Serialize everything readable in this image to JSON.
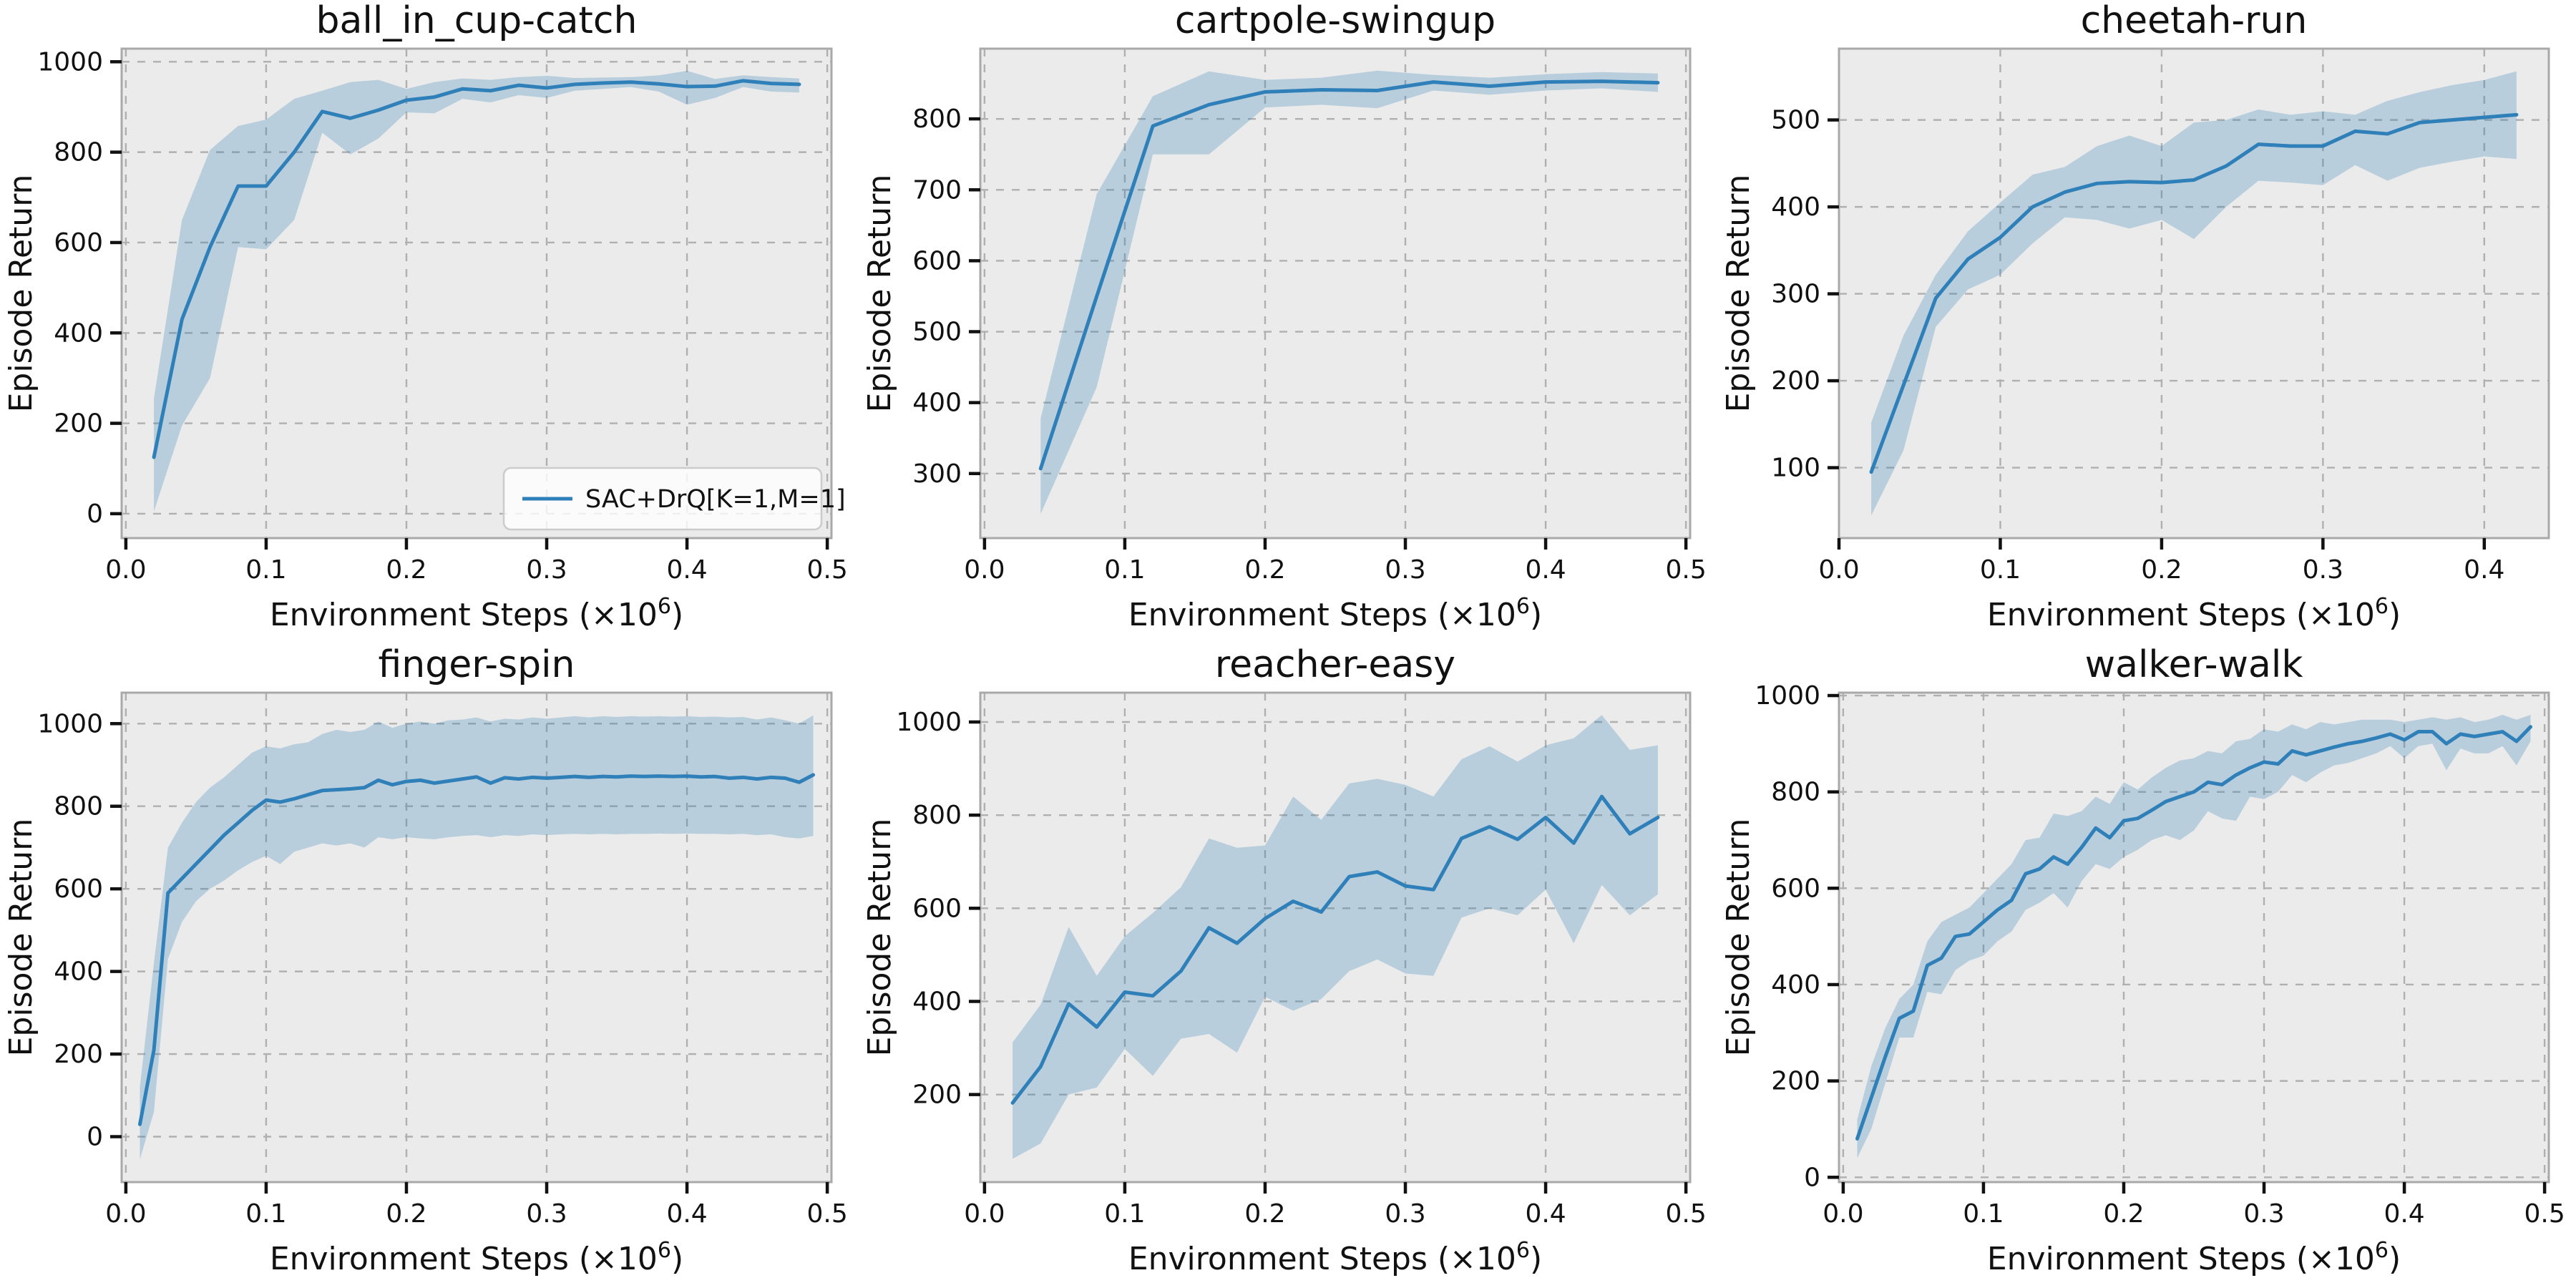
{
  "figure": {
    "xlabel_prefix": "Environment Steps (",
    "xlabel_mult": "×10",
    "xlabel_exp": "6",
    "xlabel_suffix": ")",
    "ylabel": "Episode Return"
  },
  "style": {
    "figure_bg": "#ffffff",
    "axes_bg": "#ebebeb",
    "grid_color": "#b0b0b0",
    "spine_color": "#a9a9a9",
    "tick_color": "#111111",
    "text_color": "#111111",
    "line_color": "#2f7fb9",
    "band_color": "#1f77b4",
    "band_opacity": 0.25,
    "legend_bg": "#ffffff",
    "legend_border": "#cccccc"
  },
  "chart_data": [
    {
      "type": "line",
      "title": "ball_in_cup-catch",
      "xlabel": "Environment Steps (×10⁶)",
      "ylabel": "Episode Return",
      "legend": true,
      "legend_position": "lower right",
      "grid": true,
      "xlim": [
        -0.003,
        0.503
      ],
      "ylim": [
        -54,
        1029
      ],
      "xticks": [
        0.0,
        0.1,
        0.2,
        0.3,
        0.4,
        0.5
      ],
      "xtick_labels": [
        "0.0",
        "0.1",
        "0.2",
        "0.3",
        "0.4",
        "0.5"
      ],
      "yticks": [
        0,
        200,
        400,
        600,
        800,
        1000
      ],
      "ytick_labels": [
        "0",
        "200",
        "400",
        "600",
        "800",
        "1000"
      ],
      "series": [
        {
          "name": "SAC+DrQ[K=1,M=1]",
          "x": [
            0.02,
            0.04,
            0.06,
            0.08,
            0.1,
            0.12,
            0.14,
            0.16,
            0.18,
            0.2,
            0.22,
            0.24,
            0.26,
            0.28,
            0.3,
            0.32,
            0.34,
            0.36,
            0.38,
            0.4,
            0.42,
            0.44,
            0.46,
            0.48
          ],
          "y": [
            125,
            430,
            590,
            725,
            725,
            800,
            890,
            875,
            893,
            915,
            922,
            940,
            936,
            948,
            942,
            950,
            953,
            955,
            951,
            945,
            946,
            958,
            952,
            950
          ],
          "band_lower": [
            5,
            195,
            300,
            590,
            585,
            650,
            843,
            795,
            830,
            888,
            886,
            918,
            910,
            926,
            920,
            936,
            940,
            944,
            934,
            905,
            920,
            944,
            934,
            932
          ],
          "band_upper": [
            255,
            650,
            805,
            858,
            872,
            918,
            936,
            955,
            960,
            940,
            955,
            963,
            960,
            966,
            969,
            964,
            965,
            966,
            970,
            980,
            962,
            970,
            966,
            963
          ]
        }
      ]
    },
    {
      "type": "line",
      "title": "cartpole-swingup",
      "xlabel": "Environment Steps (×10⁶)",
      "ylabel": "Episode Return",
      "legend": false,
      "grid": true,
      "xlim": [
        -0.003,
        0.503
      ],
      "ylim": [
        209,
        899
      ],
      "xticks": [
        0.0,
        0.1,
        0.2,
        0.3,
        0.4,
        0.5
      ],
      "xtick_labels": [
        "0.0",
        "0.1",
        "0.2",
        "0.3",
        "0.4",
        "0.5"
      ],
      "yticks": [
        300,
        400,
        500,
        600,
        700,
        800
      ],
      "ytick_labels": [
        "300",
        "400",
        "500",
        "600",
        "700",
        "800"
      ],
      "series": [
        {
          "name": "SAC+DrQ[K=1,M=1]",
          "x": [
            0.04,
            0.08,
            0.12,
            0.16,
            0.2,
            0.24,
            0.28,
            0.32,
            0.36,
            0.4,
            0.44,
            0.48
          ],
          "y": [
            307,
            550,
            790,
            820,
            838,
            841,
            840,
            852,
            846,
            852,
            853,
            851
          ],
          "band_lower": [
            243,
            422,
            750,
            750,
            816,
            820,
            815,
            840,
            834,
            840,
            843,
            838
          ],
          "band_upper": [
            378,
            694,
            832,
            867,
            855,
            858,
            868,
            862,
            858,
            863,
            866,
            864
          ]
        }
      ]
    },
    {
      "type": "line",
      "title": "cheetah-run",
      "xlabel": "Environment Steps (×10⁶)",
      "ylabel": "Episode Return",
      "legend": false,
      "grid": true,
      "xlim": [
        0.0,
        0.44
      ],
      "ylim": [
        19,
        582
      ],
      "xticks": [
        0.0,
        0.1,
        0.2,
        0.3,
        0.4
      ],
      "xtick_labels": [
        "0.0",
        "0.1",
        "0.2",
        "0.3",
        "0.4"
      ],
      "yticks": [
        100,
        200,
        300,
        400,
        500
      ],
      "ytick_labels": [
        "100",
        "200",
        "300",
        "400",
        "500"
      ],
      "series": [
        {
          "name": "SAC+DrQ[K=1,M=1]",
          "x": [
            0.02,
            0.04,
            0.06,
            0.08,
            0.1,
            0.12,
            0.14,
            0.16,
            0.18,
            0.2,
            0.22,
            0.24,
            0.26,
            0.28,
            0.3,
            0.32,
            0.34,
            0.36,
            0.38,
            0.4,
            0.42
          ],
          "y": [
            95,
            195,
            295,
            340,
            365,
            400,
            417,
            427,
            429,
            428,
            431,
            447,
            472,
            470,
            470,
            487,
            484,
            497,
            500,
            503,
            506
          ],
          "band_lower": [
            45,
            120,
            262,
            305,
            322,
            358,
            388,
            385,
            375,
            385,
            363,
            400,
            430,
            428,
            425,
            448,
            430,
            445,
            452,
            458,
            455
          ],
          "band_upper": [
            152,
            252,
            322,
            372,
            405,
            437,
            446,
            470,
            482,
            470,
            497,
            500,
            512,
            506,
            510,
            506,
            522,
            532,
            540,
            546,
            556
          ]
        }
      ]
    },
    {
      "type": "line",
      "title": "finger-spin",
      "xlabel": "Environment Steps (×10⁶)",
      "ylabel": "Episode Return",
      "legend": false,
      "grid": true,
      "xlim": [
        -0.003,
        0.503
      ],
      "ylim": [
        -110,
        1075
      ],
      "xticks": [
        0.0,
        0.1,
        0.2,
        0.3,
        0.4,
        0.5
      ],
      "xtick_labels": [
        "0.0",
        "0.1",
        "0.2",
        "0.3",
        "0.4",
        "0.5"
      ],
      "yticks": [
        0,
        200,
        400,
        600,
        800,
        1000
      ],
      "ytick_labels": [
        "0",
        "200",
        "400",
        "600",
        "800",
        "1000"
      ],
      "series": [
        {
          "name": "SAC+DrQ[K=1,M=1]",
          "x": [
            0.01,
            0.02,
            0.03,
            0.04,
            0.05,
            0.06,
            0.07,
            0.08,
            0.09,
            0.1,
            0.11,
            0.12,
            0.13,
            0.14,
            0.15,
            0.16,
            0.17,
            0.18,
            0.19,
            0.2,
            0.21,
            0.22,
            0.23,
            0.24,
            0.25,
            0.26,
            0.27,
            0.28,
            0.29,
            0.3,
            0.31,
            0.32,
            0.33,
            0.34,
            0.35,
            0.36,
            0.37,
            0.38,
            0.39,
            0.4,
            0.41,
            0.42,
            0.43,
            0.44,
            0.45,
            0.46,
            0.47,
            0.48,
            0.49
          ],
          "y": [
            30,
            210,
            590,
            625,
            660,
            695,
            730,
            760,
            790,
            815,
            810,
            818,
            828,
            838,
            840,
            842,
            845,
            863,
            852,
            860,
            863,
            856,
            861,
            866,
            871,
            856,
            869,
            866,
            870,
            868,
            870,
            872,
            870,
            872,
            871,
            873,
            872,
            873,
            872,
            873,
            871,
            872,
            868,
            870,
            866,
            870,
            868,
            858,
            876
          ],
          "band_lower": [
            -55,
            60,
            430,
            520,
            570,
            600,
            620,
            645,
            665,
            680,
            660,
            690,
            700,
            710,
            705,
            710,
            700,
            725,
            720,
            725,
            722,
            720,
            725,
            728,
            730,
            725,
            730,
            728,
            732,
            730,
            732,
            733,
            732,
            733,
            732,
            733,
            733,
            734,
            733,
            734,
            733,
            733,
            732,
            733,
            730,
            732,
            725,
            722,
            728
          ],
          "band_upper": [
            120,
            420,
            700,
            760,
            810,
            845,
            870,
            900,
            930,
            945,
            940,
            950,
            955,
            975,
            985,
            980,
            985,
            1005,
            990,
            1000,
            1005,
            1000,
            1008,
            1010,
            1015,
            1005,
            1012,
            1010,
            1015,
            1012,
            1015,
            1018,
            1015,
            1018,
            1016,
            1018,
            1017,
            1018,
            1017,
            1018,
            1016,
            1017,
            1015,
            1016,
            1010,
            1015,
            1008,
            1000,
            1020
          ]
        }
      ]
    },
    {
      "type": "line",
      "title": "reacher-easy",
      "xlabel": "Environment Steps (×10⁶)",
      "ylabel": "Episode Return",
      "legend": false,
      "grid": true,
      "xlim": [
        -0.003,
        0.503
      ],
      "ylim": [
        12,
        1063
      ],
      "xticks": [
        0.0,
        0.1,
        0.2,
        0.3,
        0.4,
        0.5
      ],
      "xtick_labels": [
        "0.0",
        "0.1",
        "0.2",
        "0.3",
        "0.4",
        "0.5"
      ],
      "yticks": [
        200,
        400,
        600,
        800,
        1000
      ],
      "ytick_labels": [
        "200",
        "400",
        "600",
        "800",
        "1000"
      ],
      "series": [
        {
          "name": "SAC+DrQ[K=1,M=1]",
          "x": [
            0.02,
            0.04,
            0.06,
            0.08,
            0.1,
            0.12,
            0.14,
            0.16,
            0.18,
            0.2,
            0.22,
            0.24,
            0.26,
            0.28,
            0.3,
            0.32,
            0.34,
            0.36,
            0.38,
            0.4,
            0.42,
            0.44,
            0.46,
            0.48
          ],
          "y": [
            182,
            260,
            395,
            345,
            420,
            412,
            465,
            558,
            525,
            578,
            615,
            592,
            668,
            678,
            648,
            640,
            750,
            775,
            748,
            795,
            740,
            840,
            760,
            795
          ],
          "band_lower": [
            62,
            95,
            200,
            215,
            298,
            240,
            320,
            330,
            290,
            410,
            380,
            405,
            465,
            490,
            460,
            455,
            580,
            600,
            585,
            640,
            525,
            650,
            585,
            630
          ],
          "band_upper": [
            312,
            393,
            560,
            455,
            540,
            590,
            645,
            750,
            730,
            735,
            840,
            790,
            868,
            878,
            865,
            840,
            920,
            948,
            915,
            950,
            965,
            1015,
            940,
            950
          ]
        }
      ]
    },
    {
      "type": "line",
      "title": "walker-walk",
      "xlabel": "Environment Steps (×10⁶)",
      "ylabel": "Episode Return",
      "legend": false,
      "grid": true,
      "xlim": [
        -0.003,
        0.503
      ],
      "ylim": [
        -10,
        1006
      ],
      "xticks": [
        0.0,
        0.1,
        0.2,
        0.3,
        0.4,
        0.5
      ],
      "xtick_labels": [
        "0.0",
        "0.1",
        "0.2",
        "0.3",
        "0.4",
        "0.5"
      ],
      "yticks": [
        0,
        200,
        400,
        600,
        800,
        1000
      ],
      "ytick_labels": [
        "0",
        "200",
        "400",
        "600",
        "800",
        "1000"
      ],
      "series": [
        {
          "name": "SAC+DrQ[K=1,M=1]",
          "x": [
            0.01,
            0.02,
            0.03,
            0.04,
            0.05,
            0.06,
            0.07,
            0.08,
            0.09,
            0.1,
            0.11,
            0.12,
            0.13,
            0.14,
            0.15,
            0.16,
            0.17,
            0.18,
            0.19,
            0.2,
            0.21,
            0.22,
            0.23,
            0.24,
            0.25,
            0.26,
            0.27,
            0.28,
            0.29,
            0.3,
            0.31,
            0.32,
            0.33,
            0.34,
            0.35,
            0.36,
            0.37,
            0.38,
            0.39,
            0.4,
            0.41,
            0.42,
            0.43,
            0.44,
            0.45,
            0.46,
            0.47,
            0.48,
            0.49
          ],
          "y": [
            80,
            165,
            250,
            330,
            345,
            440,
            455,
            500,
            505,
            530,
            555,
            575,
            630,
            640,
            665,
            650,
            685,
            725,
            705,
            740,
            745,
            762,
            780,
            790,
            800,
            820,
            815,
            835,
            850,
            862,
            858,
            885,
            877,
            885,
            893,
            900,
            905,
            912,
            920,
            908,
            925,
            925,
            900,
            920,
            915,
            920,
            925,
            905,
            935
          ],
          "band_lower": [
            40,
            100,
            195,
            290,
            290,
            385,
            380,
            430,
            450,
            460,
            490,
            510,
            555,
            570,
            590,
            560,
            615,
            650,
            640,
            665,
            680,
            700,
            710,
            700,
            720,
            760,
            745,
            740,
            790,
            785,
            800,
            835,
            820,
            840,
            855,
            860,
            870,
            880,
            895,
            870,
            895,
            900,
            845,
            890,
            880,
            880,
            895,
            855,
            905
          ],
          "band_upper": [
            120,
            230,
            310,
            370,
            400,
            490,
            530,
            545,
            560,
            590,
            620,
            650,
            700,
            705,
            755,
            750,
            760,
            790,
            775,
            820,
            805,
            830,
            850,
            865,
            870,
            885,
            880,
            905,
            910,
            930,
            925,
            940,
            930,
            945,
            940,
            945,
            950,
            950,
            950,
            945,
            950,
            955,
            950,
            955,
            945,
            950,
            960,
            950,
            960
          ]
        }
      ]
    }
  ]
}
